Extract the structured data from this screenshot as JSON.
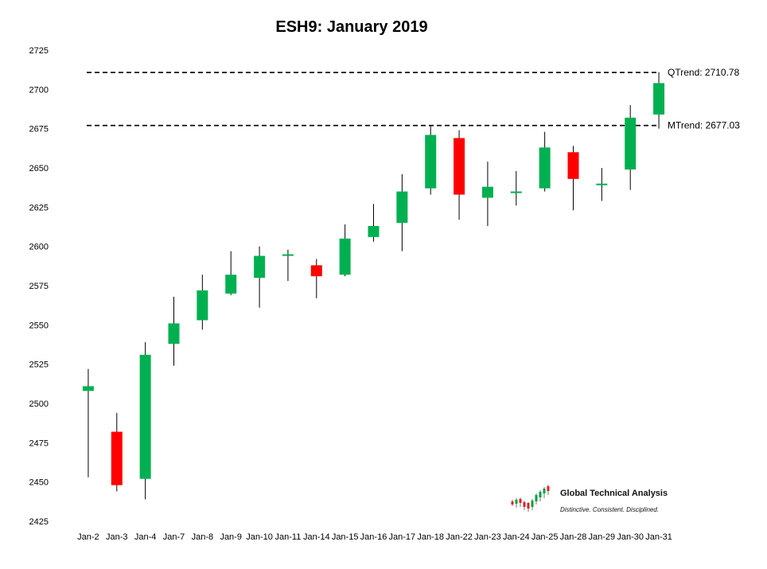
{
  "chart_data": {
    "type": "candlestick",
    "title": "ESH9: January 2019",
    "xlabel": "",
    "ylabel": "",
    "ylim": [
      2425,
      2725
    ],
    "yticks": [
      2425,
      2450,
      2475,
      2500,
      2525,
      2550,
      2575,
      2600,
      2625,
      2650,
      2675,
      2700,
      2725
    ],
    "grid": false,
    "categories": [
      "Jan-2",
      "Jan-3",
      "Jan-4",
      "Jan-7",
      "Jan-8",
      "Jan-9",
      "Jan-10",
      "Jan-11",
      "Jan-14",
      "Jan-15",
      "Jan-16",
      "Jan-17",
      "Jan-18",
      "Jan-22",
      "Jan-23",
      "Jan-24",
      "Jan-25",
      "Jan-28",
      "Jan-29",
      "Jan-30",
      "Jan-31"
    ],
    "open": [
      2508,
      2482,
      2452,
      2538,
      2553,
      2570,
      2580,
      2594,
      2588,
      2582,
      2606,
      2615,
      2637,
      2669,
      2631,
      2635,
      2637,
      2660,
      2640,
      2649,
      2684
    ],
    "high": [
      2522,
      2494,
      2539,
      2568,
      2582,
      2597,
      2600,
      2598,
      2592,
      2614,
      2627,
      2646,
      2677,
      2674,
      2654,
      2648,
      2673,
      2664,
      2650,
      2690,
      2711
    ],
    "low": [
      2453,
      2444,
      2439,
      2524,
      2547,
      2569,
      2561,
      2578,
      2567,
      2581,
      2603,
      2597,
      2633,
      2617,
      2613,
      2626,
      2635,
      2623,
      2629,
      2636,
      2675
    ],
    "close": [
      2511,
      2448,
      2531,
      2551,
      2572,
      2582,
      2594,
      2595,
      2581,
      2605,
      2613,
      2635,
      2671,
      2633,
      2638,
      2635,
      2663,
      2643,
      2640,
      2682,
      2704
    ],
    "up_color": "#00b050",
    "down_color": "#ff0000",
    "trend_lines": [
      {
        "label": "QTrend: 2710.78",
        "value": 2710.78
      },
      {
        "label": "MTrend: 2677.03",
        "value": 2677.03
      }
    ]
  },
  "logo": {
    "name": "Global Technical Analysis",
    "tagline": "Distinctive.  Consistent.  Disciplined."
  }
}
